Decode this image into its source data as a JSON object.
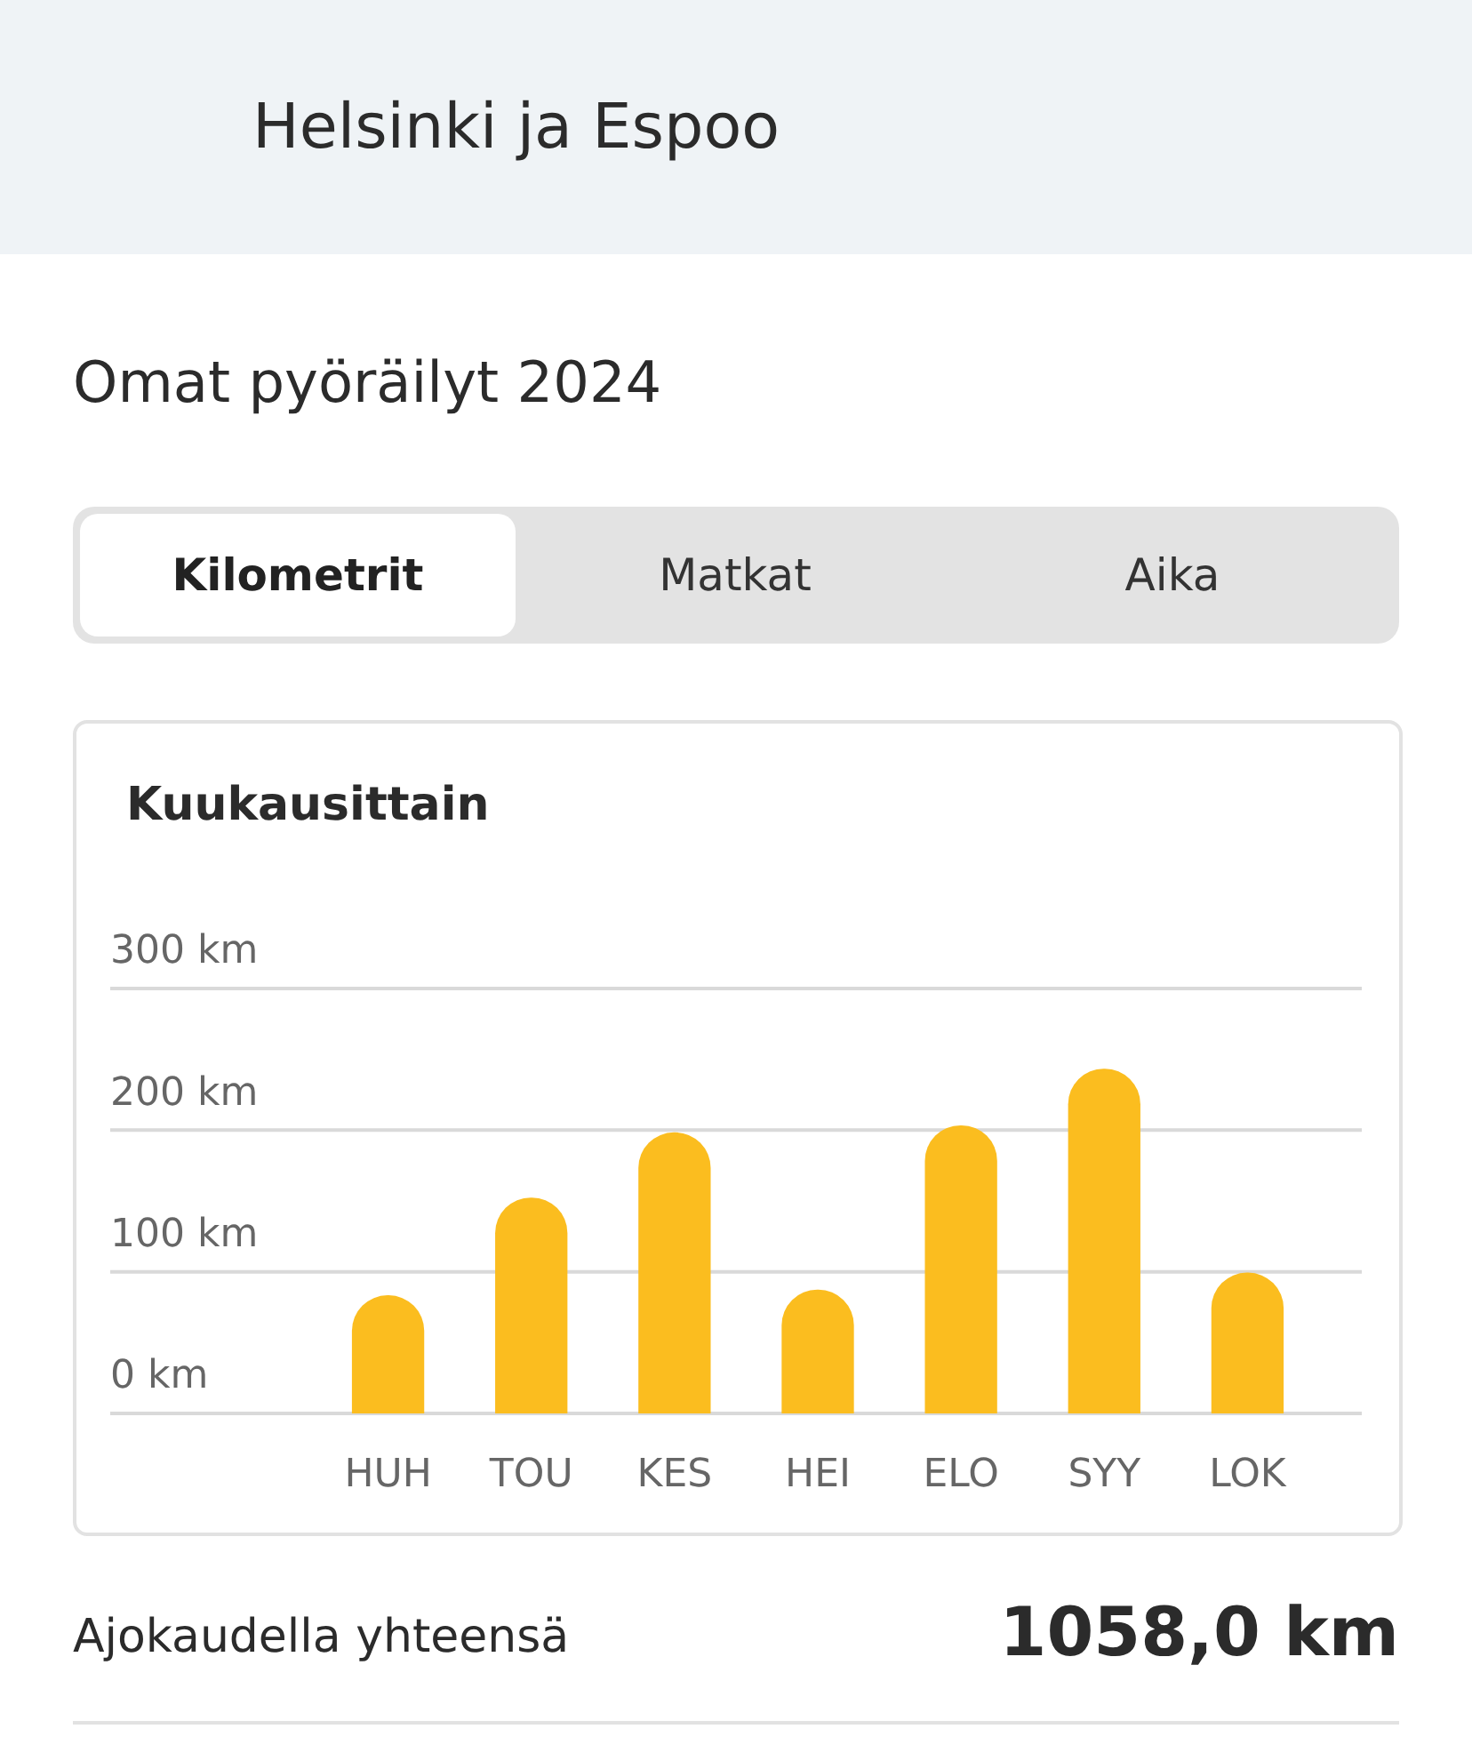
{
  "chart_data": {
    "type": "bar",
    "title": "Omat pyöräilyt 2024",
    "subtitle": "Kuukausittain",
    "annotations": [
      "Helsinki ja Espoo",
      "Kilometrit",
      "Matkat",
      "Aika",
      "Ajokaudella yhteensä",
      "1058,0 km"
    ],
    "categories": [
      "HUH",
      "TOU",
      "KES",
      "HEI",
      "ELO",
      "SYY",
      "LOK"
    ],
    "values": [
      83,
      152,
      198,
      87,
      203,
      243,
      99
    ],
    "color": "#fbbd1f",
    "ylim": [
      0,
      300
    ],
    "yticks": [
      {
        "value": 0,
        "label": "0 km"
      },
      {
        "value": 100,
        "label": "100 km"
      },
      {
        "value": 200,
        "label": "200 km"
      },
      {
        "value": 300,
        "label": "300 km"
      }
    ],
    "grid": "y",
    "legend": false
  }
}
